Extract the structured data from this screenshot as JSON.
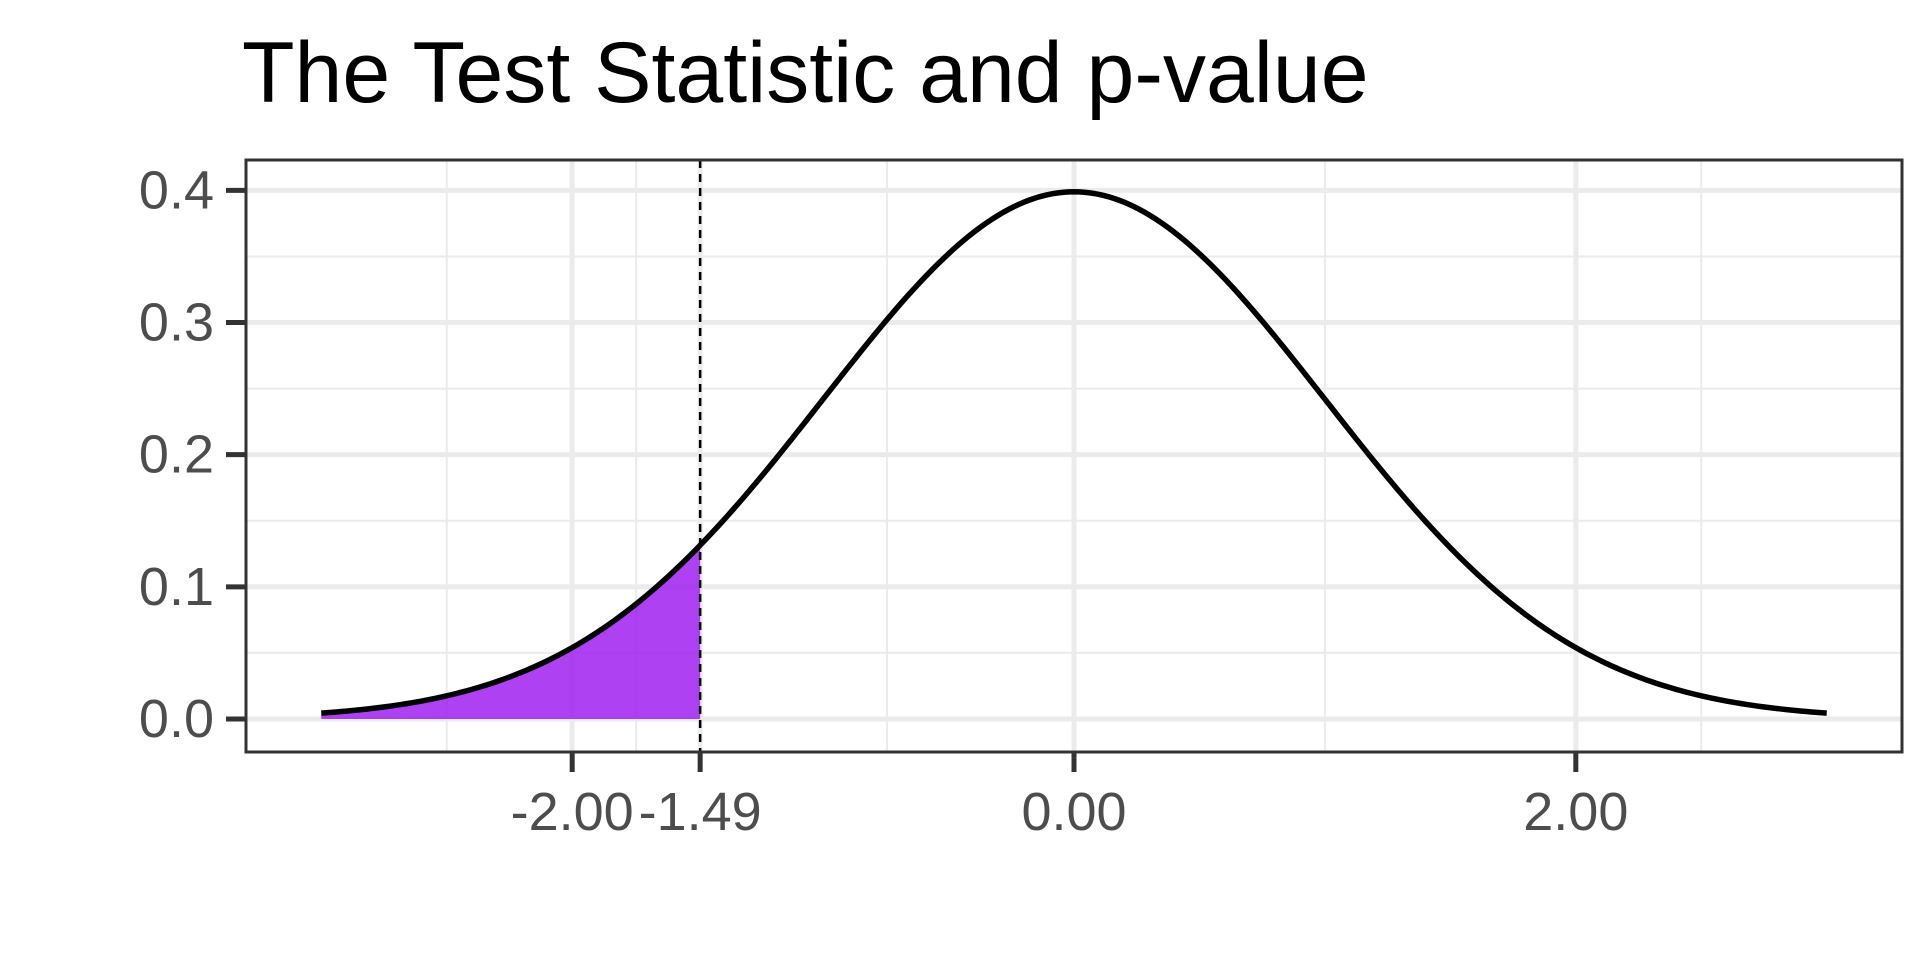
{
  "chart_data": {
    "type": "area",
    "title": "The Test Statistic and p-value",
    "xlabel": "",
    "ylabel": "",
    "distribution": "standard normal density",
    "xlim": [
      -3,
      3
    ],
    "ylim": [
      0,
      0.4
    ],
    "x_ticks": [
      -2.0,
      -1.49,
      0.0,
      2.0
    ],
    "x_tick_labels": [
      "-2.00",
      "-1.49",
      "0.00",
      "2.00"
    ],
    "y_ticks": [
      0.0,
      0.1,
      0.2,
      0.3,
      0.4
    ],
    "y_tick_labels": [
      "0.0",
      "0.1",
      "0.2",
      "0.3",
      "0.4"
    ],
    "x_minor_gridlines": [
      -2.5,
      -1.745,
      -0.745,
      1.0,
      2.5
    ],
    "test_statistic": -1.49,
    "shaded_region": {
      "from": -3,
      "to": -1.49,
      "fill": "#a020f0"
    },
    "curve_color": "#000000",
    "vline_style": "dashed",
    "grid": true,
    "legend": "none"
  }
}
